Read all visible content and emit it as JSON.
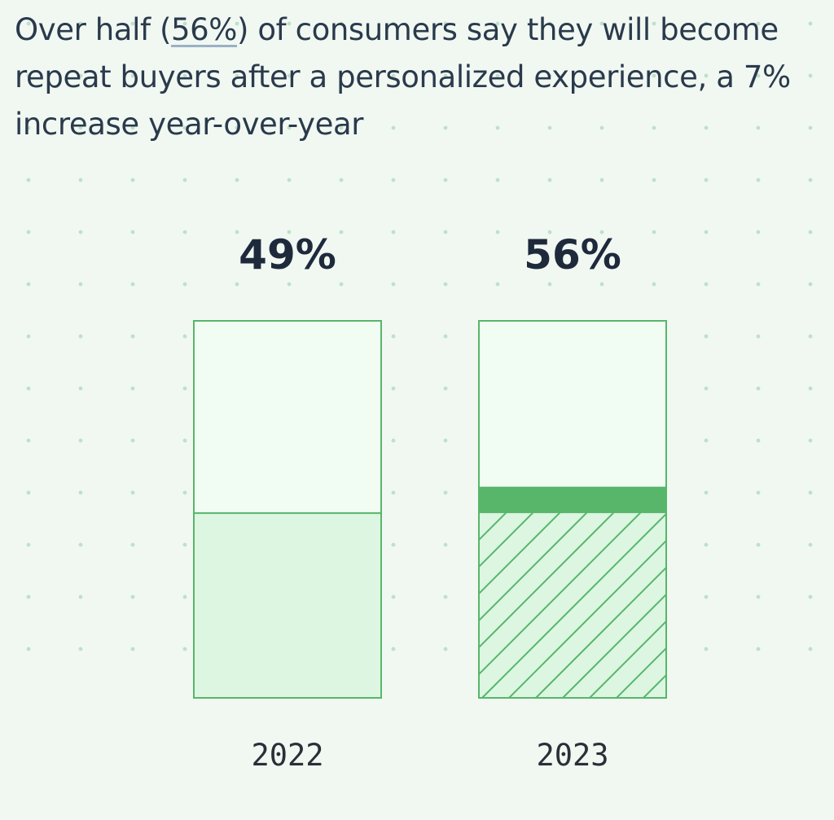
{
  "title": {
    "before": "Over half (",
    "highlight": "56%",
    "after": ") of consumers say they will become repeat buyers after a personalized experience, a 7% increase year-over-year"
  },
  "colors": {
    "background": "#f1f8f2",
    "bar_empty": "#f1fcf3",
    "bar_fill": "#dcf6e2",
    "bar_stroke": "#57b66a",
    "increase_band": "#57b66a",
    "hatch": "#57b66a",
    "title_text": "#2a3a4c",
    "value_text": "#1e2a3c"
  },
  "chart_data": {
    "type": "bar",
    "title": "Over half (56%) of consumers say they will become repeat buyers after a personalized experience, a 7% increase year-over-year",
    "categories": [
      "2022",
      "2023"
    ],
    "values": [
      49,
      56
    ],
    "value_labels": [
      "49%",
      "56%"
    ],
    "ylim": [
      0,
      100
    ],
    "increase": 7,
    "hatched": [
      false,
      true
    ],
    "grid": false,
    "legend": "none"
  }
}
